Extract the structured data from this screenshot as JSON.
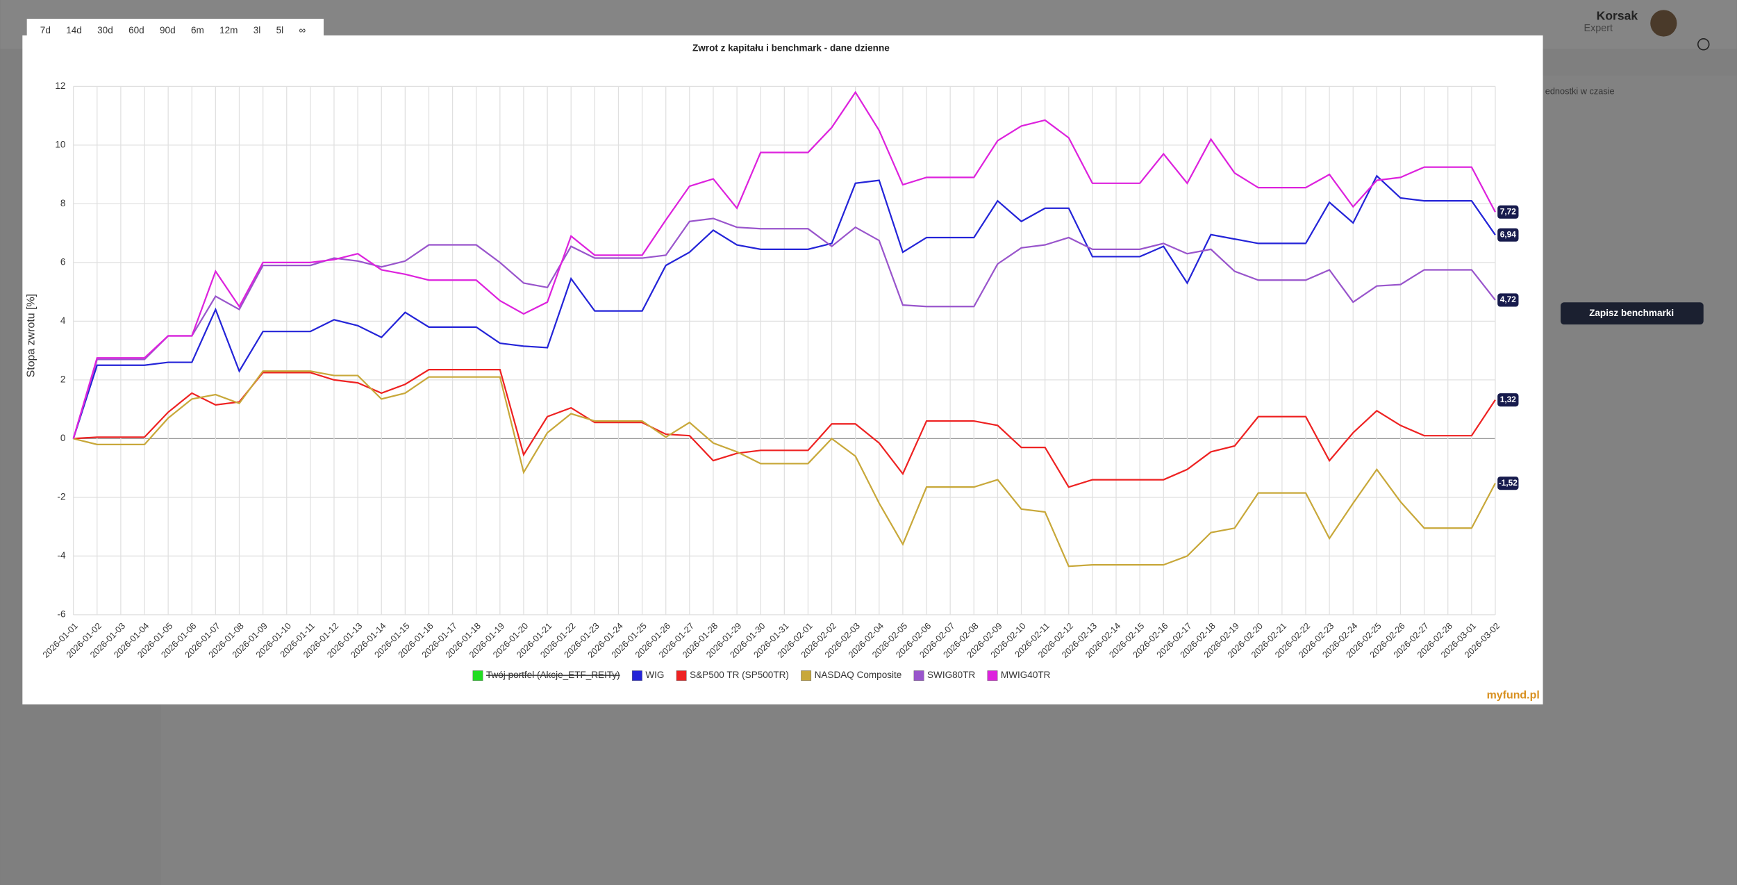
{
  "background": {
    "user_name": "Korsak",
    "user_role": "Expert",
    "save_button": "Zapisz benchmarki",
    "partial_caption": "ednostki w czasie"
  },
  "range_buttons": [
    "7d",
    "14d",
    "30d",
    "60d",
    "90d",
    "6m",
    "12m",
    "3l",
    "5l",
    "∞"
  ],
  "logo": "myfund.pl",
  "chart_data": {
    "type": "line",
    "title": "Zwrot z kapitału i benchmark - dane dzienne",
    "y_label": "Stopa zwrotu [%]",
    "categories": [
      "2026-01-01",
      "2026-01-02",
      "2026-01-03",
      "2026-01-04",
      "2026-01-05",
      "2026-01-06",
      "2026-01-07",
      "2026-01-08",
      "2026-01-09",
      "2026-01-10",
      "2026-01-11",
      "2026-01-12",
      "2026-01-13",
      "2026-01-14",
      "2026-01-15",
      "2026-01-16",
      "2026-01-17",
      "2026-01-18",
      "2026-01-19",
      "2026-01-20",
      "2026-01-21",
      "2026-01-22",
      "2026-01-23",
      "2026-01-24",
      "2026-01-25",
      "2026-01-26",
      "2026-01-27",
      "2026-01-28",
      "2026-01-29",
      "2026-01-30",
      "2026-01-31",
      "2026-02-01",
      "2026-02-02",
      "2026-02-03",
      "2026-02-04",
      "2026-02-05",
      "2026-02-06",
      "2026-02-07",
      "2026-02-08",
      "2026-02-09",
      "2026-02-10",
      "2026-02-11",
      "2026-02-12",
      "2026-02-13",
      "2026-02-14",
      "2026-02-15",
      "2026-02-16",
      "2026-02-17",
      "2026-02-18",
      "2026-02-19",
      "2026-02-20",
      "2026-02-21",
      "2026-02-22",
      "2026-02-23",
      "2026-02-24",
      "2026-02-25",
      "2026-02-26",
      "2026-02-27",
      "2026-02-28",
      "2026-03-01",
      "2026-03-02"
    ],
    "ylim": [
      -6,
      12
    ],
    "yticks": [
      -6,
      -4,
      -2,
      0,
      2,
      4,
      6,
      8,
      10,
      12
    ],
    "grid": true,
    "series": [
      {
        "name": "Twój portfel (Akcje_ETF_REITy)",
        "color": "#22dd22",
        "hidden": true
      },
      {
        "name": "WIG",
        "color": "#2424d8",
        "end_label": "6,94",
        "values": [
          0,
          2.5,
          2.5,
          2.5,
          2.6,
          2.6,
          4.4,
          2.3,
          3.65,
          3.65,
          3.65,
          4.05,
          3.85,
          3.45,
          4.3,
          3.8,
          3.8,
          3.8,
          3.25,
          3.15,
          3.1,
          5.45,
          4.35,
          4.35,
          4.35,
          5.9,
          6.35,
          7.1,
          6.6,
          6.45,
          6.45,
          6.45,
          6.65,
          8.7,
          8.8,
          6.35,
          6.85,
          6.85,
          6.85,
          8.1,
          7.4,
          7.85,
          7.85,
          6.2,
          6.2,
          6.2,
          6.55,
          5.3,
          6.95,
          6.8,
          6.65,
          6.65,
          6.65,
          8.05,
          7.35,
          8.95,
          8.2,
          8.1,
          8.1,
          8.1,
          6.94
        ]
      },
      {
        "name": "S&P500 TR (SP500TR)",
        "color": "#ee2222",
        "end_label": "1,32",
        "values": [
          0,
          0.05,
          0.05,
          0.05,
          0.9,
          1.55,
          1.15,
          1.25,
          2.25,
          2.25,
          2.25,
          2.0,
          1.9,
          1.55,
          1.85,
          2.35,
          2.35,
          2.35,
          2.35,
          -0.55,
          0.75,
          1.05,
          0.55,
          0.55,
          0.55,
          0.15,
          0.1,
          -0.75,
          -0.5,
          -0.4,
          -0.4,
          -0.4,
          0.5,
          0.5,
          -0.15,
          -1.2,
          0.6,
          0.6,
          0.6,
          0.45,
          -0.3,
          -0.3,
          -1.65,
          -1.4,
          -1.4,
          -1.4,
          -1.4,
          -1.05,
          -0.45,
          -0.25,
          0.75,
          0.75,
          0.75,
          -0.75,
          0.2,
          0.95,
          0.45,
          0.1,
          0.1,
          0.1,
          1.32
        ]
      },
      {
        "name": "NASDAQ Composite",
        "color": "#c8a83a",
        "end_label": "-1,52",
        "values": [
          0,
          -0.2,
          -0.2,
          -0.2,
          0.7,
          1.35,
          1.5,
          1.2,
          2.3,
          2.3,
          2.3,
          2.15,
          2.15,
          1.35,
          1.55,
          2.1,
          2.1,
          2.1,
          2.1,
          -1.15,
          0.2,
          0.85,
          0.6,
          0.6,
          0.6,
          0.05,
          0.55,
          -0.15,
          -0.45,
          -0.85,
          -0.85,
          -0.85,
          0,
          -0.6,
          -2.2,
          -3.6,
          -1.65,
          -1.65,
          -1.65,
          -1.4,
          -2.4,
          -2.5,
          -4.35,
          -4.3,
          -4.3,
          -4.3,
          -4.3,
          -4.0,
          -3.2,
          -3.05,
          -1.85,
          -1.85,
          -1.85,
          -3.4,
          -2.2,
          -1.05,
          -2.15,
          -3.05,
          -3.05,
          -3.05,
          -1.52
        ]
      },
      {
        "name": "SWIG80TR",
        "color": "#9955cc",
        "end_label": "4,72",
        "values": [
          0,
          2.7,
          2.7,
          2.7,
          3.5,
          3.5,
          4.85,
          4.4,
          5.9,
          5.9,
          5.9,
          6.15,
          6.05,
          5.85,
          6.05,
          6.6,
          6.6,
          6.6,
          6.0,
          5.3,
          5.15,
          6.55,
          6.15,
          6.15,
          6.15,
          6.25,
          7.4,
          7.5,
          7.2,
          7.15,
          7.15,
          7.15,
          6.55,
          7.2,
          6.75,
          4.55,
          4.5,
          4.5,
          4.5,
          5.95,
          6.5,
          6.6,
          6.85,
          6.45,
          6.45,
          6.45,
          6.65,
          6.3,
          6.45,
          5.7,
          5.4,
          5.4,
          5.4,
          5.75,
          4.65,
          5.2,
          5.25,
          5.75,
          5.75,
          5.75,
          4.72
        ]
      },
      {
        "name": "MWIG40TR",
        "color": "#dd22dd",
        "end_label": "7,72",
        "values": [
          0,
          2.75,
          2.75,
          2.75,
          3.5,
          3.5,
          5.7,
          4.5,
          6.0,
          6.0,
          6.0,
          6.1,
          6.3,
          5.75,
          5.6,
          5.4,
          5.4,
          5.4,
          4.7,
          4.25,
          4.65,
          6.9,
          6.25,
          6.25,
          6.25,
          7.45,
          8.6,
          8.85,
          7.85,
          9.75,
          9.75,
          9.75,
          10.6,
          11.8,
          10.5,
          8.65,
          8.9,
          8.9,
          8.9,
          10.15,
          10.65,
          10.85,
          10.25,
          8.7,
          8.7,
          8.7,
          9.7,
          8.7,
          10.2,
          9.05,
          8.55,
          8.55,
          8.55,
          9.0,
          7.9,
          8.8,
          8.9,
          9.25,
          9.25,
          9.25,
          7.72
        ]
      }
    ]
  }
}
